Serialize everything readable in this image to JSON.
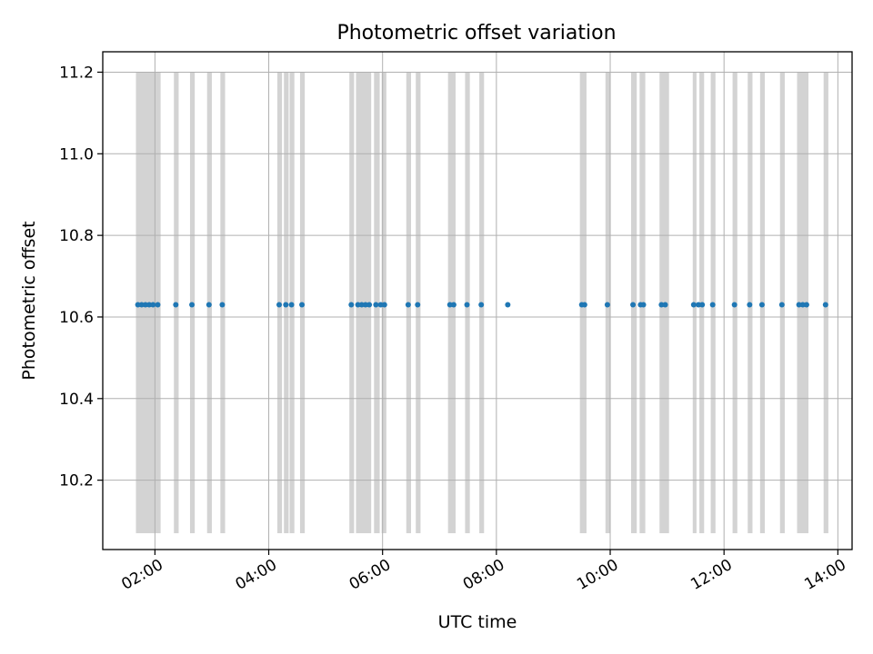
{
  "chart_data": {
    "type": "scatter",
    "title": "Photometric offset variation",
    "xlabel": "UTC time",
    "ylabel": "Photometric offset",
    "x_axis_type": "time",
    "xlim": [
      "01:05",
      "14:15"
    ],
    "ylim": [
      10.03,
      11.25
    ],
    "x_ticks": [
      "02:00",
      "04:00",
      "06:00",
      "08:00",
      "10:00",
      "12:00",
      "14:00"
    ],
    "y_ticks": [
      10.2,
      10.4,
      10.6,
      10.8,
      11.0,
      11.2
    ],
    "grid": true,
    "colors": {
      "points": "#1f77b4",
      "spans": "#d3d3d3",
      "grid": "#b0b0b0"
    },
    "span_range": [
      10.07,
      11.2
    ],
    "spans": [
      [
        "01:40",
        "02:06"
      ],
      [
        "02:20",
        "02:25"
      ],
      [
        "02:37",
        "02:42"
      ],
      [
        "02:55",
        "03:00"
      ],
      [
        "03:09",
        "03:14"
      ],
      [
        "04:09",
        "04:14"
      ],
      [
        "04:16",
        "04:21"
      ],
      [
        "04:22",
        "04:27"
      ],
      [
        "04:33",
        "04:38"
      ],
      [
        "05:25",
        "05:30"
      ],
      [
        "05:32",
        "05:48"
      ],
      [
        "05:51",
        "05:57"
      ],
      [
        "05:59",
        "06:04"
      ],
      [
        "06:25",
        "06:30"
      ],
      [
        "06:35",
        "06:40"
      ],
      [
        "07:09",
        "07:17"
      ],
      [
        "07:27",
        "07:32"
      ],
      [
        "07:42",
        "07:47"
      ],
      [
        "09:28",
        "09:35"
      ],
      [
        "09:55",
        "10:00"
      ],
      [
        "10:22",
        "10:28"
      ],
      [
        "10:31",
        "10:37"
      ],
      [
        "10:52",
        "11:02"
      ],
      [
        "11:27",
        "11:31"
      ],
      [
        "11:34",
        "11:39"
      ],
      [
        "11:46",
        "11:51"
      ],
      [
        "12:09",
        "12:14"
      ],
      [
        "12:25",
        "12:30"
      ],
      [
        "12:38",
        "12:43"
      ],
      [
        "12:59",
        "13:04"
      ],
      [
        "13:17",
        "13:29"
      ],
      [
        "13:45",
        "13:50"
      ]
    ],
    "series": [
      {
        "x": [
          "01:42",
          "01:46",
          "01:50",
          "01:54",
          "01:58",
          "02:03",
          "02:22",
          "02:39",
          "02:57",
          "03:11",
          "04:11",
          "04:18",
          "04:24",
          "04:35",
          "05:27",
          "05:34",
          "05:38",
          "05:42",
          "05:46",
          "05:53",
          "05:58",
          "06:02",
          "06:27",
          "06:37",
          "07:11",
          "07:15",
          "07:29",
          "07:44",
          "08:12",
          "09:30",
          "09:33",
          "09:57",
          "10:24",
          "10:32",
          "10:35",
          "10:54",
          "10:58",
          "11:28",
          "11:33",
          "11:37",
          "11:48",
          "12:11",
          "12:27",
          "12:40",
          "13:01",
          "13:19",
          "13:23",
          "13:27",
          "13:47"
        ],
        "y": [
          10.63,
          10.63,
          10.63,
          10.63,
          10.63,
          10.63,
          10.63,
          10.63,
          10.63,
          10.63,
          10.63,
          10.63,
          10.63,
          10.63,
          10.63,
          10.63,
          10.63,
          10.63,
          10.63,
          10.63,
          10.63,
          10.63,
          10.63,
          10.63,
          10.63,
          10.63,
          10.63,
          10.63,
          10.63,
          10.63,
          10.63,
          10.63,
          10.63,
          10.63,
          10.63,
          10.63,
          10.63,
          10.63,
          10.63,
          10.63,
          10.63,
          10.63,
          10.63,
          10.63,
          10.63,
          10.63,
          10.63,
          10.63,
          10.63
        ]
      }
    ]
  }
}
